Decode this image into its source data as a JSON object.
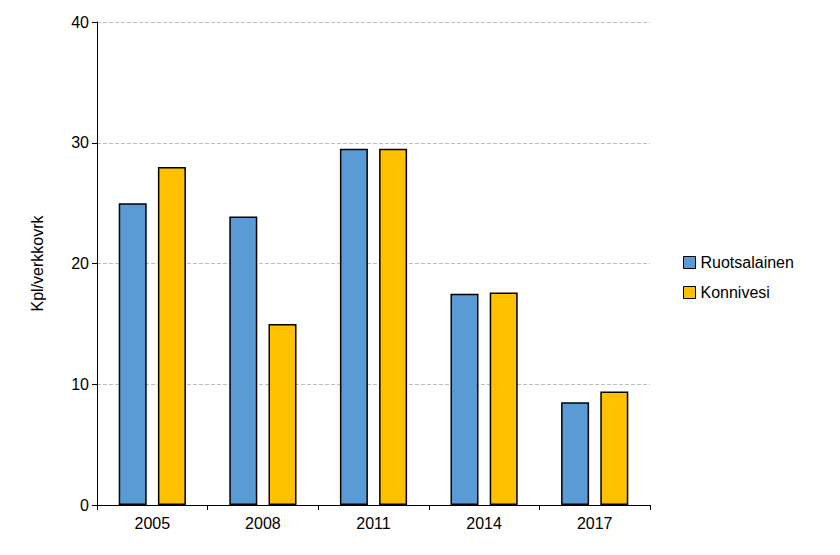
{
  "chart_data": {
    "type": "bar",
    "y_label": "Kpl/verkkovrk",
    "categories": [
      "2005",
      "2008",
      "2011",
      "2014",
      "2017"
    ],
    "series": [
      {
        "name": "Ruotsalainen",
        "color": "#5b9bd5",
        "values": [
          25,
          23.9,
          29.5,
          17.5,
          8.5
        ]
      },
      {
        "name": "Konnivesi",
        "color": "#ffc000",
        "values": [
          28,
          15,
          29.5,
          17.6,
          9.4
        ]
      }
    ],
    "ylim": [
      0,
      40
    ],
    "yticks": [
      0,
      10,
      20,
      30,
      40
    ],
    "grid": true,
    "legend": "right"
  }
}
